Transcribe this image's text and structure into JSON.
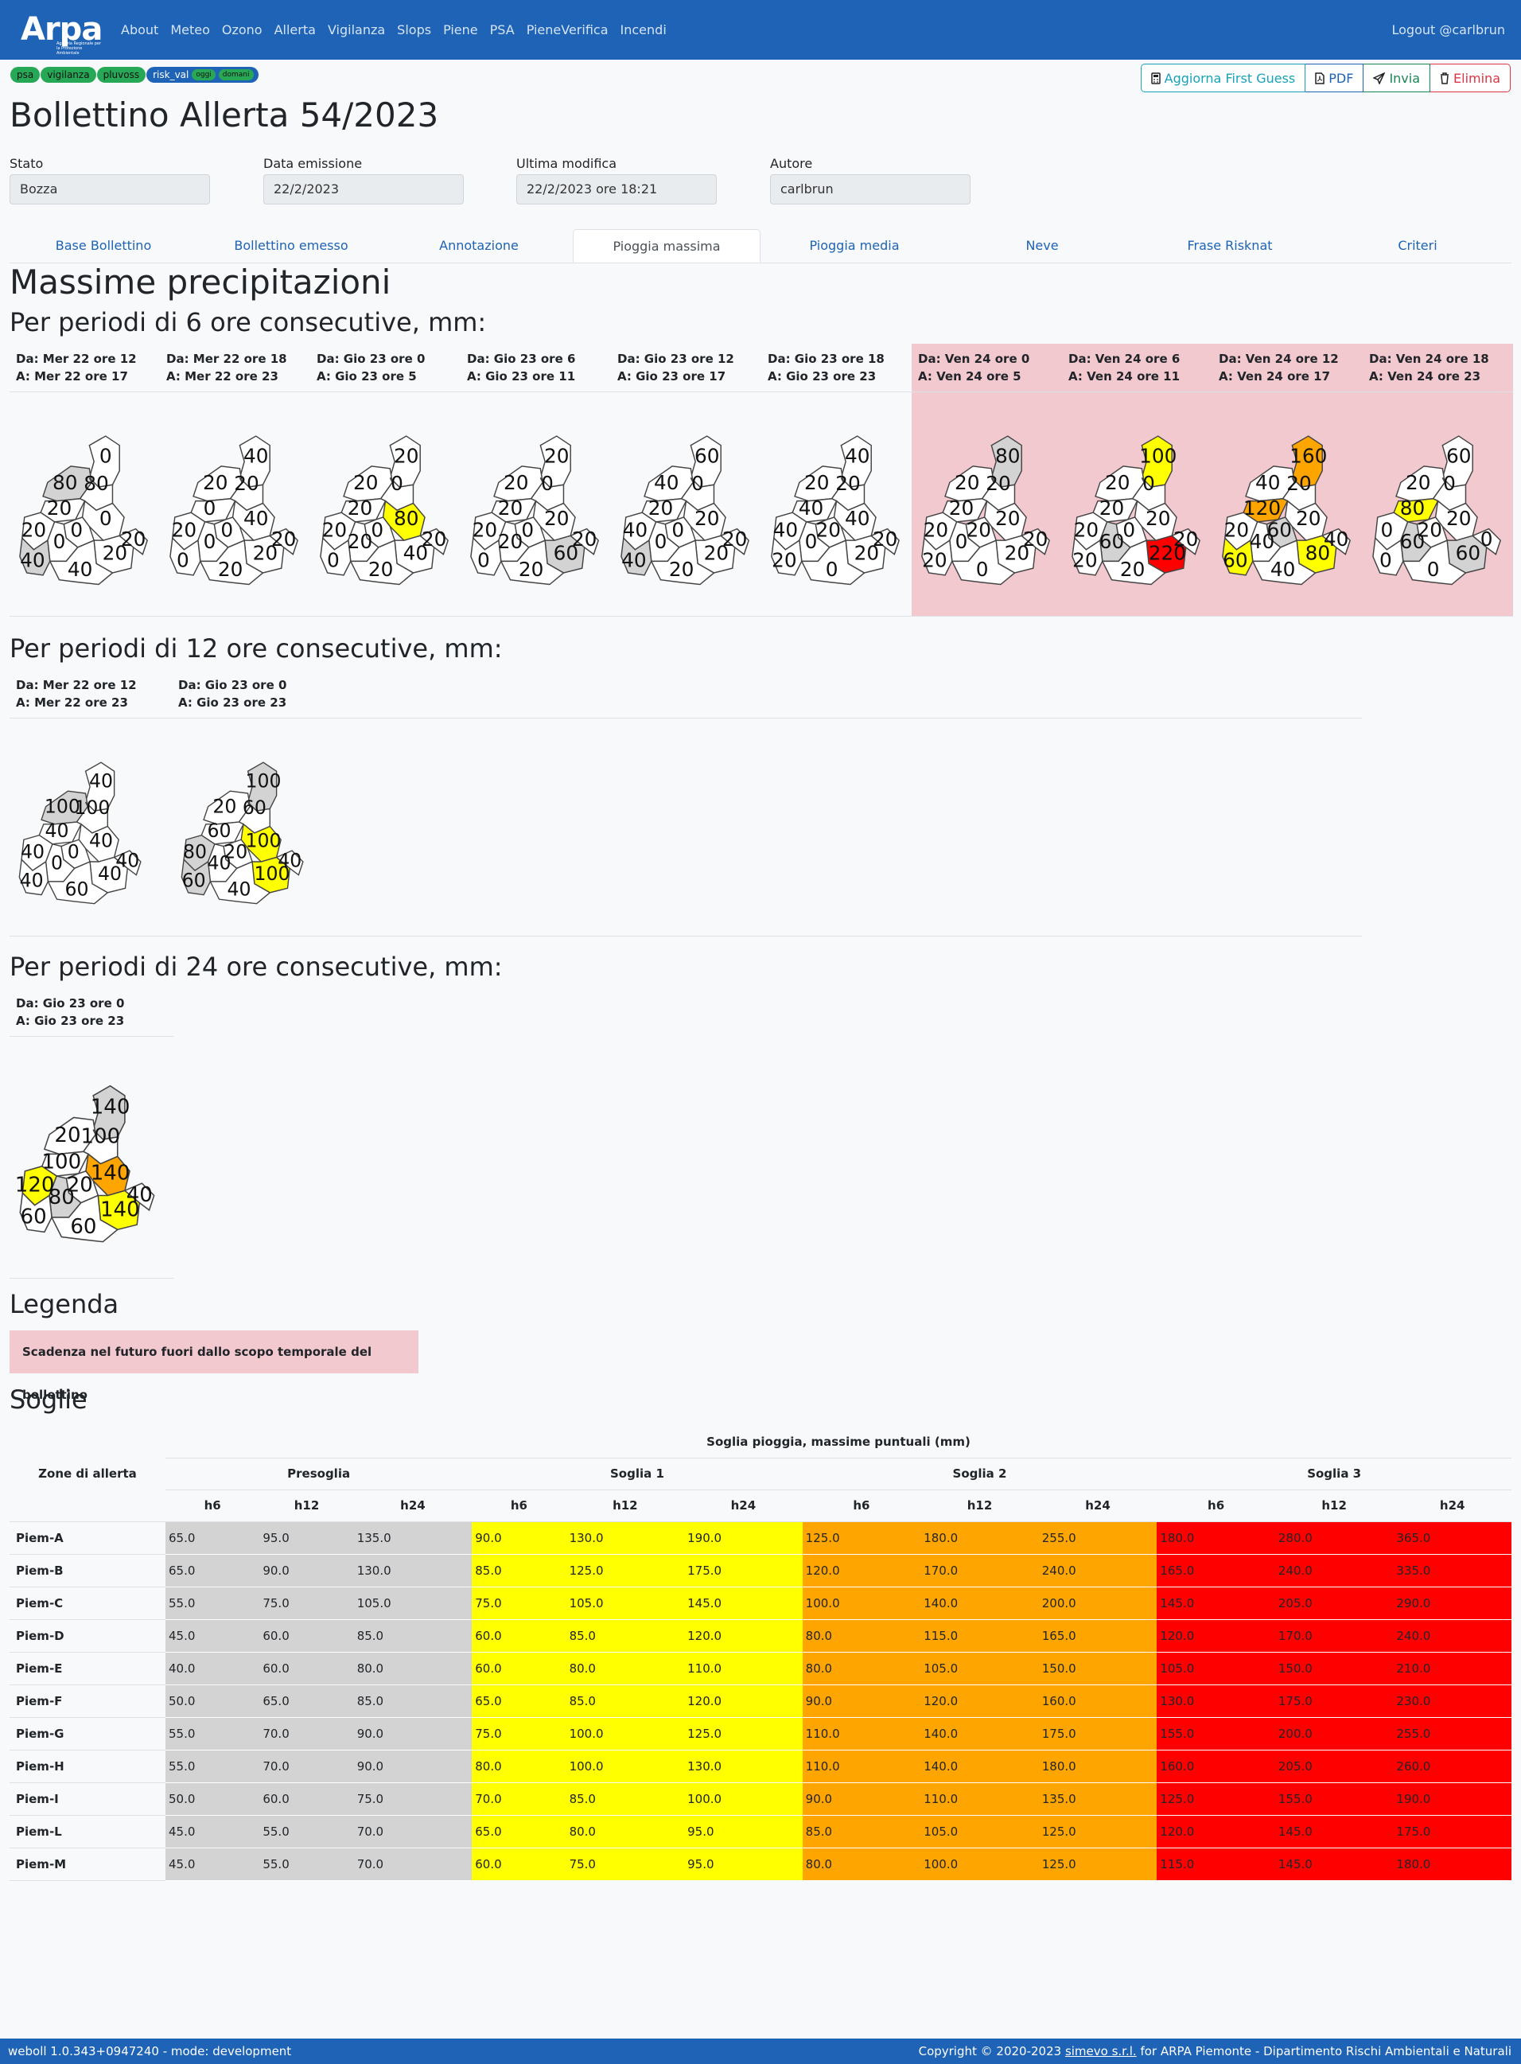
{
  "navbar": {
    "logo_text": "Arpa",
    "logo_subtext": "Agenzia Regionale per la Protezione Ambientale",
    "links": [
      "About",
      "Meteo",
      "Ozono",
      "Allerta",
      "Vigilanza",
      "Slops",
      "Piene",
      "PSA",
      "PieneVerifica",
      "Incendi"
    ],
    "logout": "Logout @carlbrun"
  },
  "tags": {
    "psa": "psa",
    "vigilanza": "vigilanza",
    "pluvoss": "pluvoss",
    "risk_val": "risk_val",
    "oggi": "oggi",
    "domani": "domani"
  },
  "actions": {
    "refresh": "Aggiorna First Guess",
    "pdf": "PDF",
    "send": "Invia",
    "delete": "Elimina"
  },
  "page_title": "Bollettino Allerta 54/2023",
  "fields": [
    {
      "label": "Stato",
      "value": "Bozza"
    },
    {
      "label": "Data emissione",
      "value": "22/2/2023"
    },
    {
      "label": "Ultima modifica",
      "value": "22/2/2023 ore 18:21"
    },
    {
      "label": "Autore",
      "value": "carlbrun"
    }
  ],
  "tabs": [
    "Base Bollettino",
    "Bollettino emesso",
    "Annotazione",
    "Pioggia massima",
    "Pioggia media",
    "Neve",
    "Frase Risknat",
    "Criteri"
  ],
  "active_tab": "Pioggia massima",
  "section_title": "Massime precipitazioni",
  "colors": {
    "gray": "#d3d3d3",
    "yellow": "#ffff00",
    "orange": "#ffa500",
    "red": "#ff0000",
    "white": "#ffffff",
    "future": "#f2c9cf"
  },
  "periods6": {
    "heading": "Per periodi di 6 ore consecutive, mm:",
    "cols": [
      {
        "from": "Da: Mer 22 ore 12",
        "to": "A: Mer 22 ore 17",
        "future": false,
        "values": [
          0,
          80,
          80,
          20,
          0,
          0,
          20,
          0,
          20,
          20,
          40,
          40
        ],
        "fills": [
          "white",
          "gray",
          "white",
          "white",
          "white",
          "white",
          "white",
          "white",
          "white",
          "white",
          "gray",
          "white"
        ]
      },
      {
        "from": "Da: Mer 22 ore 18",
        "to": "A: Mer 22 ore 23",
        "future": false,
        "values": [
          40,
          20,
          20,
          0,
          40,
          0,
          20,
          0,
          20,
          20,
          0,
          20
        ],
        "fills": [
          "white",
          "white",
          "white",
          "white",
          "white",
          "white",
          "white",
          "white",
          "white",
          "white",
          "white",
          "white"
        ]
      },
      {
        "from": "Da: Gio 23 ore 0",
        "to": "A: Gio 23 ore 5",
        "future": false,
        "values": [
          20,
          20,
          0,
          20,
          80,
          0,
          20,
          20,
          40,
          20,
          0,
          20
        ],
        "fills": [
          "white",
          "white",
          "white",
          "white",
          "yellow",
          "white",
          "white",
          "white",
          "white",
          "white",
          "white",
          "white"
        ]
      },
      {
        "from": "Da: Gio 23 ore 6",
        "to": "A: Gio 23 ore 11",
        "future": false,
        "values": [
          20,
          20,
          0,
          20,
          20,
          0,
          20,
          20,
          60,
          20,
          0,
          20
        ],
        "fills": [
          "white",
          "white",
          "white",
          "white",
          "white",
          "white",
          "white",
          "white",
          "gray",
          "white",
          "white",
          "white"
        ]
      },
      {
        "from": "Da: Gio 23 ore 12",
        "to": "A: Gio 23 ore 17",
        "future": false,
        "values": [
          60,
          40,
          0,
          20,
          20,
          0,
          40,
          0,
          20,
          20,
          40,
          20
        ],
        "fills": [
          "white",
          "white",
          "white",
          "white",
          "white",
          "white",
          "white",
          "white",
          "white",
          "white",
          "gray",
          "white"
        ]
      },
      {
        "from": "Da: Gio 23 ore 18",
        "to": "A: Gio 23 ore 23",
        "future": false,
        "values": [
          40,
          20,
          20,
          40,
          40,
          20,
          40,
          0,
          20,
          20,
          20,
          0
        ],
        "fills": [
          "white",
          "white",
          "white",
          "white",
          "white",
          "white",
          "white",
          "white",
          "white",
          "white",
          "white",
          "white"
        ]
      },
      {
        "from": "Da: Ven 24 ore 0",
        "to": "A: Ven 24 ore 5",
        "future": true,
        "values": [
          80,
          20,
          20,
          20,
          20,
          20,
          20,
          0,
          20,
          20,
          20,
          0
        ],
        "fills": [
          "gray",
          "white",
          "white",
          "white",
          "white",
          "white",
          "white",
          "white",
          "white",
          "white",
          "white",
          "white"
        ]
      },
      {
        "from": "Da: Ven 24 ore 6",
        "to": "A: Ven 24 ore 11",
        "future": true,
        "values": [
          100,
          20,
          0,
          20,
          20,
          0,
          20,
          60,
          220,
          20,
          20,
          20
        ],
        "fills": [
          "yellow",
          "white",
          "white",
          "white",
          "white",
          "white",
          "white",
          "gray",
          "red",
          "white",
          "white",
          "white"
        ]
      },
      {
        "from": "Da: Ven 24 ore 12",
        "to": "A: Ven 24 ore 17",
        "future": true,
        "values": [
          160,
          40,
          20,
          120,
          20,
          60,
          20,
          40,
          80,
          40,
          60,
          40
        ],
        "fills": [
          "orange",
          "white",
          "white",
          "orange",
          "white",
          "gray",
          "white",
          "white",
          "yellow",
          "white",
          "yellow",
          "white"
        ]
      },
      {
        "from": "Da: Ven 24 ore 18",
        "to": "A: Ven 24 ore 23",
        "future": true,
        "values": [
          60,
          20,
          0,
          80,
          20,
          20,
          0,
          60,
          60,
          0,
          0,
          0
        ],
        "fills": [
          "white",
          "white",
          "white",
          "yellow",
          "white",
          "white",
          "white",
          "gray",
          "gray",
          "white",
          "white",
          "white"
        ]
      }
    ]
  },
  "periods12": {
    "heading": "Per periodi di 12 ore consecutive, mm:",
    "cols": [
      {
        "from": "Da: Mer 22 ore 12",
        "to": "A: Mer 22 ore 23",
        "values": [
          40,
          100,
          100,
          40,
          40,
          0,
          40,
          0,
          40,
          40,
          40,
          60
        ],
        "fills": [
          "white",
          "gray",
          "white",
          "white",
          "white",
          "white",
          "white",
          "white",
          "white",
          "white",
          "white",
          "white"
        ]
      },
      {
        "from": "Da: Gio 23 ore 0",
        "to": "A: Gio 23 ore 23",
        "values": [
          100,
          20,
          60,
          60,
          100,
          20,
          80,
          40,
          100,
          40,
          60,
          40
        ],
        "fills": [
          "gray",
          "white",
          "white",
          "white",
          "yellow",
          "white",
          "gray",
          "white",
          "yellow",
          "white",
          "gray",
          "white"
        ]
      }
    ]
  },
  "periods24": {
    "heading": "Per periodi di 24 ore consecutive, mm:",
    "cols": [
      {
        "from": "Da: Gio 23 ore 0",
        "to": "A: Gio 23 ore 23",
        "values": [
          140,
          20,
          100,
          100,
          140,
          20,
          120,
          80,
          140,
          40,
          60,
          60
        ],
        "fills": [
          "gray",
          "white",
          "white",
          "white",
          "orange",
          "white",
          "yellow",
          "gray",
          "yellow",
          "white",
          "white",
          "white"
        ]
      }
    ]
  },
  "legend": {
    "title": "Legenda",
    "future_label": "Scadenza nel futuro fuori dallo scopo temporale del bollettino"
  },
  "thresholds": {
    "title": "Soglie",
    "caption": "Soglia pioggia, massime puntuali (mm)",
    "zone_header": "Zone di allerta",
    "groups": [
      "Presoglia",
      "Soglia 1",
      "Soglia 2",
      "Soglia 3"
    ],
    "subheaders": [
      "h6",
      "h12",
      "h24"
    ],
    "rows": [
      {
        "zone": "Piem-A",
        "values": [
          "65.0",
          "95.0",
          "135.0",
          "90.0",
          "130.0",
          "190.0",
          "125.0",
          "180.0",
          "255.0",
          "180.0",
          "280.0",
          "365.0"
        ]
      },
      {
        "zone": "Piem-B",
        "values": [
          "65.0",
          "90.0",
          "130.0",
          "85.0",
          "125.0",
          "175.0",
          "120.0",
          "170.0",
          "240.0",
          "165.0",
          "240.0",
          "335.0"
        ]
      },
      {
        "zone": "Piem-C",
        "values": [
          "55.0",
          "75.0",
          "105.0",
          "75.0",
          "105.0",
          "145.0",
          "100.0",
          "140.0",
          "200.0",
          "145.0",
          "205.0",
          "290.0"
        ]
      },
      {
        "zone": "Piem-D",
        "values": [
          "45.0",
          "60.0",
          "85.0",
          "60.0",
          "85.0",
          "120.0",
          "80.0",
          "115.0",
          "165.0",
          "120.0",
          "170.0",
          "240.0"
        ]
      },
      {
        "zone": "Piem-E",
        "values": [
          "40.0",
          "60.0",
          "80.0",
          "60.0",
          "80.0",
          "110.0",
          "80.0",
          "105.0",
          "150.0",
          "105.0",
          "150.0",
          "210.0"
        ]
      },
      {
        "zone": "Piem-F",
        "values": [
          "50.0",
          "65.0",
          "85.0",
          "65.0",
          "85.0",
          "120.0",
          "90.0",
          "120.0",
          "160.0",
          "130.0",
          "175.0",
          "230.0"
        ]
      },
      {
        "zone": "Piem-G",
        "values": [
          "55.0",
          "70.0",
          "90.0",
          "75.0",
          "100.0",
          "125.0",
          "110.0",
          "140.0",
          "175.0",
          "155.0",
          "200.0",
          "255.0"
        ]
      },
      {
        "zone": "Piem-H",
        "values": [
          "55.0",
          "70.0",
          "90.0",
          "80.0",
          "100.0",
          "130.0",
          "110.0",
          "140.0",
          "180.0",
          "160.0",
          "205.0",
          "260.0"
        ]
      },
      {
        "zone": "Piem-I",
        "values": [
          "50.0",
          "60.0",
          "75.0",
          "70.0",
          "85.0",
          "100.0",
          "90.0",
          "110.0",
          "135.0",
          "125.0",
          "155.0",
          "190.0"
        ]
      },
      {
        "zone": "Piem-L",
        "values": [
          "45.0",
          "55.0",
          "70.0",
          "65.0",
          "80.0",
          "95.0",
          "85.0",
          "105.0",
          "125.0",
          "120.0",
          "145.0",
          "175.0"
        ]
      },
      {
        "zone": "Piem-M",
        "values": [
          "45.0",
          "55.0",
          "70.0",
          "60.0",
          "75.0",
          "95.0",
          "80.0",
          "100.0",
          "125.0",
          "115.0",
          "145.0",
          "180.0"
        ]
      }
    ]
  },
  "footer": {
    "version": "weboll 1.0.343+0947240 - mode: development",
    "copyright_pre": "Copyright © 2020-2023 ",
    "company": "simevo s.r.l.",
    "copyright_post": " for ARPA Piemonte - Dipartimento Rischi Ambientali e Naturali"
  }
}
